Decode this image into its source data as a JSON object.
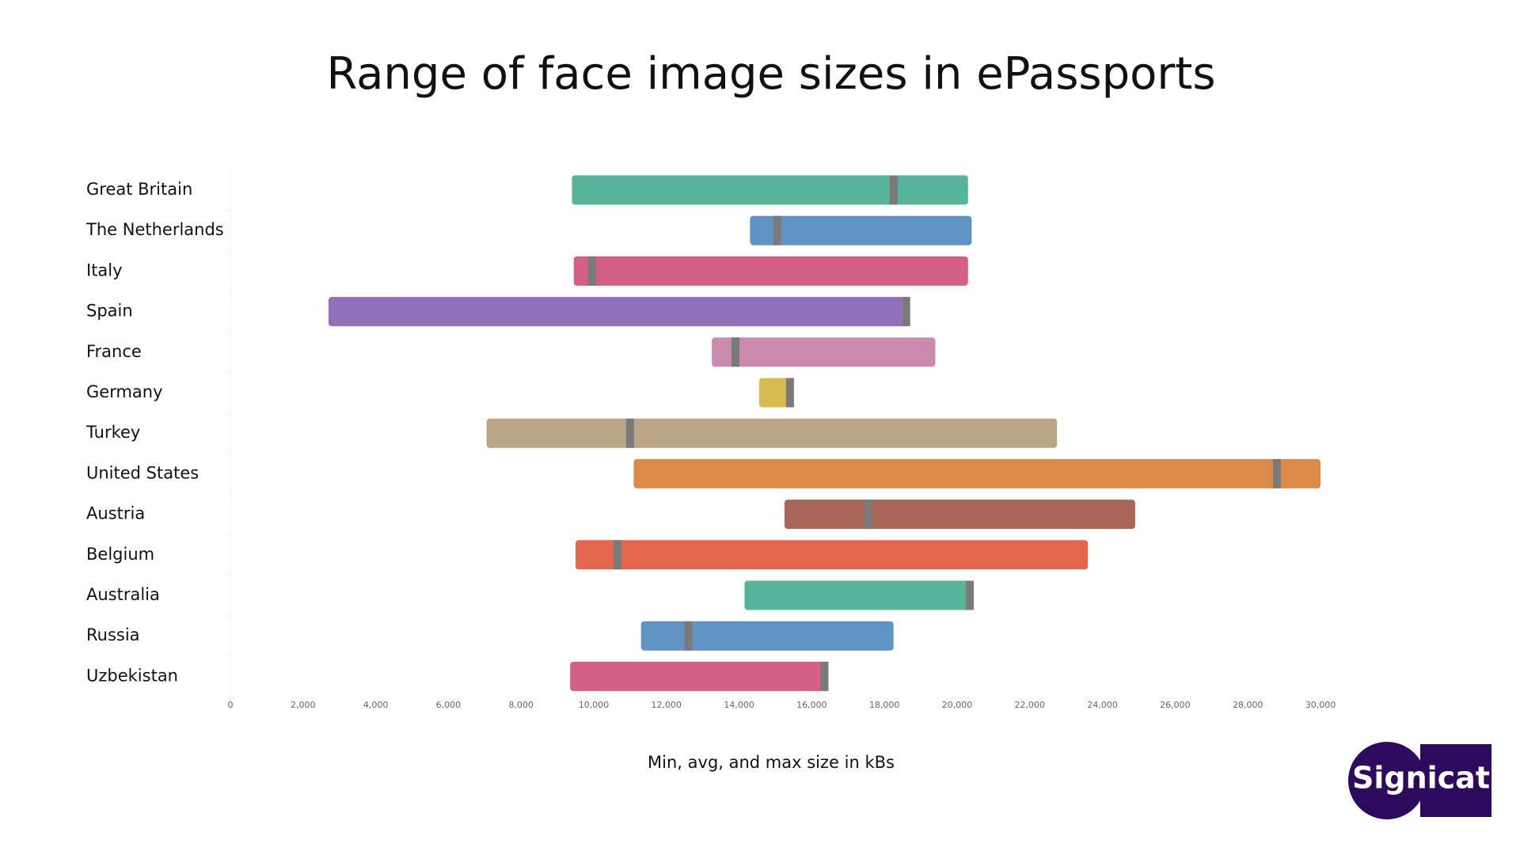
{
  "chart_data": {
    "type": "range-bar",
    "title": "Range of face image sizes in ePassports",
    "x_label": "Min, avg, and max size in kBs",
    "categories": [
      "Great Britain",
      "The Netherlands",
      "Italy",
      "Spain",
      "France",
      "Germany",
      "Turkey",
      "United States",
      "Austria",
      "Belgium",
      "Australia",
      "Russia",
      "Uzbekistan"
    ],
    "min": [
      9400,
      14300,
      9450,
      2700,
      13250,
      14550,
      7050,
      11100,
      15250,
      9500,
      14150,
      11300,
      9350
    ],
    "avg": [
      18250,
      15050,
      9950,
      18600,
      13900,
      15400,
      11000,
      28800,
      17550,
      10650,
      20350,
      12600,
      16350
    ],
    "max": [
      20300,
      20400,
      20300,
      18700,
      19400,
      15500,
      22750,
      30000,
      24900,
      23600,
      20450,
      18250,
      16450
    ],
    "colors": [
      "#57b39a",
      "#5f93c4",
      "#d45f86",
      "#8f72b9",
      "#c98aad",
      "#d6bc52",
      "#baa685",
      "#db8a48",
      "#a96557",
      "#e5664e",
      "#57b39a",
      "#5f93c4",
      "#d45f86"
    ],
    "avg_color": "#7a7a7a",
    "xlim": [
      0,
      30000
    ],
    "xticks": [
      0,
      {
        "value": 2000,
        "label": "2,000"
      },
      {
        "value": 4000,
        "label": "4,000"
      },
      {
        "value": 6000,
        "label": "6,000"
      },
      {
        "value": 8000,
        "label": "8,000"
      },
      {
        "value": 10000,
        "label": "10,000"
      },
      {
        "value": 12000,
        "label": "12,000"
      },
      {
        "value": 14000,
        "label": "14,000"
      },
      {
        "value": 16000,
        "label": "16,000"
      },
      {
        "value": 18000,
        "label": "18,000"
      },
      {
        "value": 20000,
        "label": "20,000"
      },
      {
        "value": 22000,
        "label": "22,000"
      },
      {
        "value": 24000,
        "label": "24,000"
      },
      {
        "value": 26000,
        "label": "26,000"
      },
      {
        "value": 28000,
        "label": "28,000"
      },
      {
        "value": 30000,
        "label": "30,000"
      }
    ]
  },
  "logo": "Signicat"
}
